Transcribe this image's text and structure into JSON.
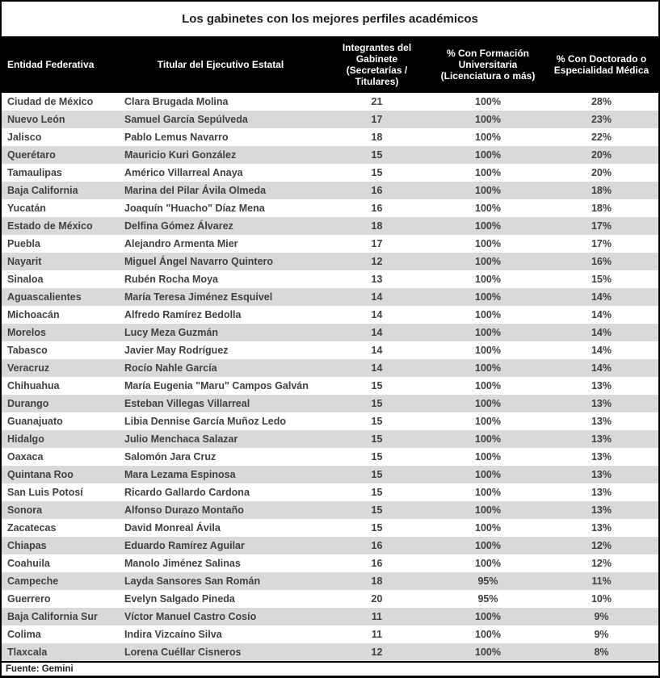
{
  "title": "Los gabinetes con los mejores perfiles académicos",
  "footer": {
    "source": "Fuente: Gemini"
  },
  "colors": {
    "header_bg": "#000000",
    "header_text": "#ffffff",
    "row_alt": "#d9d9d9",
    "cell_text": "#404040",
    "border": "#000000"
  },
  "table": {
    "headers": [
      "Entidad Federativa",
      "Titular del Ejecutivo Estatal",
      "Integrantes del Gabinete (Secretarías / Titulares)",
      "% Con Formación Universitaria (Licenciatura o más)",
      "% Con Doctorado o Especialidad Médica"
    ],
    "rows": [
      {
        "entity": "Ciudad de México",
        "governor": "Clara Brugada Molina",
        "members": "21",
        "pct_university": "100%",
        "pct_doctorate": "28%"
      },
      {
        "entity": "Nuevo León",
        "governor": "Samuel García Sepúlveda",
        "members": "17",
        "pct_university": "100%",
        "pct_doctorate": "23%"
      },
      {
        "entity": "Jalisco",
        "governor": "Pablo Lemus Navarro",
        "members": "18",
        "pct_university": "100%",
        "pct_doctorate": "22%"
      },
      {
        "entity": "Querétaro",
        "governor": "Mauricio Kuri González",
        "members": "15",
        "pct_university": "100%",
        "pct_doctorate": "20%"
      },
      {
        "entity": "Tamaulipas",
        "governor": "Américo Villarreal Anaya",
        "members": "15",
        "pct_university": "100%",
        "pct_doctorate": "20%"
      },
      {
        "entity": "Baja California",
        "governor": "Marina del Pilar Ávila Olmeda",
        "members": "16",
        "pct_university": "100%",
        "pct_doctorate": "18%"
      },
      {
        "entity": "Yucatán",
        "governor": "Joaquín \"Huacho\" Díaz Mena",
        "members": "16",
        "pct_university": "100%",
        "pct_doctorate": "18%"
      },
      {
        "entity": "Estado de México",
        "governor": "Delfina Gómez Álvarez",
        "members": "18",
        "pct_university": "100%",
        "pct_doctorate": "17%"
      },
      {
        "entity": "Puebla",
        "governor": "Alejandro Armenta Mier",
        "members": "17",
        "pct_university": "100%",
        "pct_doctorate": "17%"
      },
      {
        "entity": "Nayarit",
        "governor": "Miguel Ángel Navarro Quintero",
        "members": "12",
        "pct_university": "100%",
        "pct_doctorate": "16%"
      },
      {
        "entity": "Sinaloa",
        "governor": "Rubén Rocha Moya",
        "members": "13",
        "pct_university": "100%",
        "pct_doctorate": "15%"
      },
      {
        "entity": "Aguascalientes",
        "governor": "María Teresa Jiménez Esquivel",
        "members": "14",
        "pct_university": "100%",
        "pct_doctorate": "14%"
      },
      {
        "entity": "Michoacán",
        "governor": "Alfredo Ramírez Bedolla",
        "members": "14",
        "pct_university": "100%",
        "pct_doctorate": "14%"
      },
      {
        "entity": "Morelos",
        "governor": "Lucy Meza Guzmán",
        "members": "14",
        "pct_university": "100%",
        "pct_doctorate": "14%"
      },
      {
        "entity": "Tabasco",
        "governor": "Javier May Rodríguez",
        "members": "14",
        "pct_university": "100%",
        "pct_doctorate": "14%"
      },
      {
        "entity": "Veracruz",
        "governor": "Rocío Nahle García",
        "members": "14",
        "pct_university": "100%",
        "pct_doctorate": "14%"
      },
      {
        "entity": "Chihuahua",
        "governor": "María Eugenia \"Maru\" Campos Galván",
        "members": "15",
        "pct_university": "100%",
        "pct_doctorate": "13%"
      },
      {
        "entity": "Durango",
        "governor": "Esteban Villegas Villarreal",
        "members": "15",
        "pct_university": "100%",
        "pct_doctorate": "13%"
      },
      {
        "entity": "Guanajuato",
        "governor": "Libia Dennise García Muñoz Ledo",
        "members": "15",
        "pct_university": "100%",
        "pct_doctorate": "13%"
      },
      {
        "entity": "Hidalgo",
        "governor": "Julio Menchaca Salazar",
        "members": "15",
        "pct_university": "100%",
        "pct_doctorate": "13%"
      },
      {
        "entity": "Oaxaca",
        "governor": "Salomón Jara Cruz",
        "members": "15",
        "pct_university": "100%",
        "pct_doctorate": "13%"
      },
      {
        "entity": "Quintana Roo",
        "governor": "Mara Lezama Espinosa",
        "members": "15",
        "pct_university": "100%",
        "pct_doctorate": "13%"
      },
      {
        "entity": "San Luis Potosí",
        "governor": "Ricardo Gallardo Cardona",
        "members": "15",
        "pct_university": "100%",
        "pct_doctorate": "13%"
      },
      {
        "entity": "Sonora",
        "governor": "Alfonso Durazo Montaño",
        "members": "15",
        "pct_university": "100%",
        "pct_doctorate": "13%"
      },
      {
        "entity": "Zacatecas",
        "governor": "David Monreal Ávila",
        "members": "15",
        "pct_university": "100%",
        "pct_doctorate": "13%"
      },
      {
        "entity": "Chiapas",
        "governor": "Eduardo Ramírez Aguilar",
        "members": "16",
        "pct_university": "100%",
        "pct_doctorate": "12%"
      },
      {
        "entity": "Coahuila",
        "governor": "Manolo Jiménez Salinas",
        "members": "16",
        "pct_university": "100%",
        "pct_doctorate": "12%"
      },
      {
        "entity": "Campeche",
        "governor": "Layda Sansores San Román",
        "members": "18",
        "pct_university": "95%",
        "pct_doctorate": "11%"
      },
      {
        "entity": "Guerrero",
        "governor": "Evelyn Salgado Pineda",
        "members": "20",
        "pct_university": "95%",
        "pct_doctorate": "10%"
      },
      {
        "entity": "Baja California Sur",
        "governor": "Víctor Manuel Castro Cosío",
        "members": "11",
        "pct_university": "100%",
        "pct_doctorate": "9%"
      },
      {
        "entity": "Colima",
        "governor": "Indira Vizcaíno Silva",
        "members": "11",
        "pct_university": "100%",
        "pct_doctorate": "9%"
      },
      {
        "entity": "Tlaxcala",
        "governor": "Lorena Cuéllar Cisneros",
        "members": "12",
        "pct_university": "100%",
        "pct_doctorate": "8%"
      }
    ]
  }
}
